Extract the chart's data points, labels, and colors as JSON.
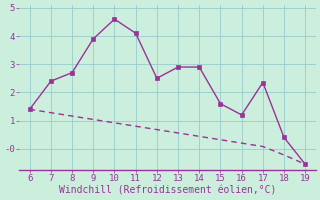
{
  "x": [
    6,
    7,
    8,
    9,
    10,
    11,
    12,
    13,
    14,
    15,
    16,
    17,
    18,
    19
  ],
  "y_line": [
    1.4,
    2.4,
    2.7,
    3.9,
    4.6,
    4.1,
    2.5,
    2.9,
    2.9,
    1.6,
    1.2,
    2.35,
    0.4,
    -0.55
  ],
  "y_trend": [
    1.4,
    1.28,
    1.16,
    1.04,
    0.92,
    0.8,
    0.68,
    0.56,
    0.44,
    0.32,
    0.2,
    0.08,
    -0.22,
    -0.55
  ],
  "line_color": "#993399",
  "background_color": "#cceedd",
  "grid_color": "#99cccc",
  "border_color": "#993399",
  "xlabel": "Windchill (Refroidissement éolien,°C)",
  "xlim": [
    5.5,
    19.5
  ],
  "ylim": [
    -0.75,
    5.1
  ],
  "yticks": [
    0,
    1,
    2,
    3,
    4,
    5
  ],
  "ytick_labels": [
    "-0",
    "1",
    "2",
    "3",
    "4",
    "5"
  ],
  "xticks": [
    6,
    7,
    8,
    9,
    10,
    11,
    12,
    13,
    14,
    15,
    16,
    17,
    18,
    19
  ],
  "font_color": "#993399",
  "font_size": 6.5,
  "xlabel_font_size": 7.0,
  "line_width": 1.0,
  "marker_size": 2.5
}
